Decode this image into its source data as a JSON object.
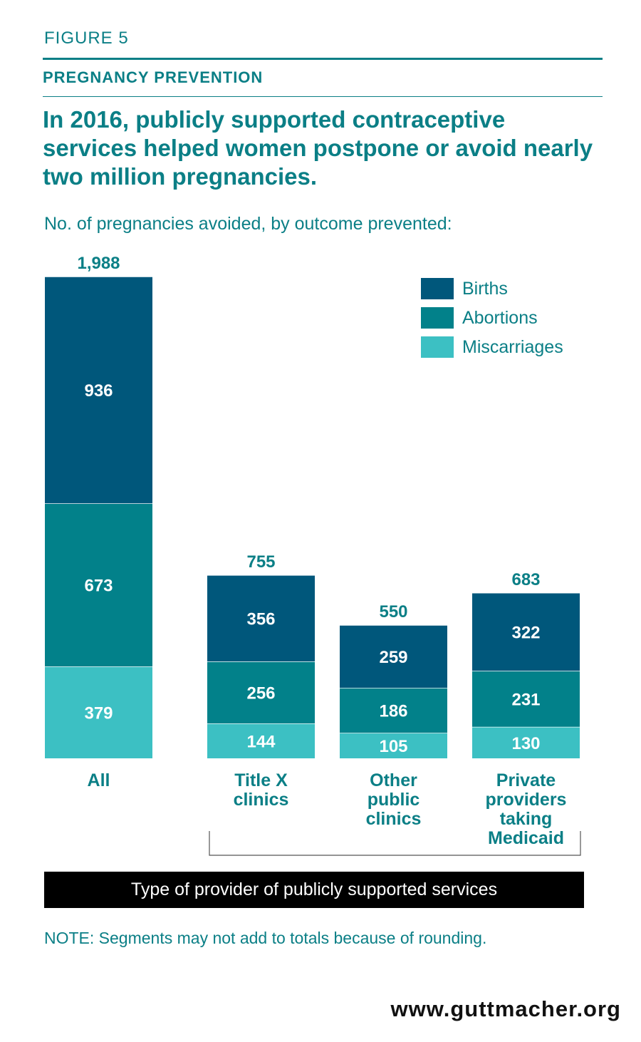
{
  "header": {
    "figure_label": "FIGURE 5",
    "section_label": "PREGNANCY PREVENTION",
    "headline": "In 2016, publicly supported contraceptive services helped women postpone or avoid nearly two million pregnancies."
  },
  "chart_data": {
    "type": "bar",
    "stacked": true,
    "title": "In 2016, publicly supported contraceptive services helped women postpone or avoid nearly two million pregnancies.",
    "subtitle": "No. of pregnancies avoided, by outcome prevented:",
    "categories": [
      [
        "All"
      ],
      [
        "Title X",
        "clinics"
      ],
      [
        "Other",
        "public",
        "clinics"
      ],
      [
        "Private",
        "providers",
        "taking",
        "Medicaid"
      ]
    ],
    "totals": [
      1988,
      755,
      550,
      683
    ],
    "total_labels": [
      "1,988",
      "755",
      "550",
      "683"
    ],
    "series": [
      {
        "name": "Births",
        "color": "#00577b",
        "values": [
          936,
          356,
          259,
          322
        ]
      },
      {
        "name": "Abortions",
        "color": "#02818a",
        "values": [
          673,
          256,
          186,
          231
        ]
      },
      {
        "name": "Miscarriages",
        "color": "#3cc0c3",
        "values": [
          379,
          144,
          105,
          130
        ]
      }
    ],
    "ylim": [
      0,
      1988
    ],
    "legend_position": "top-right",
    "grid": false,
    "group_label": "Type of provider of publicly supported services"
  },
  "note": "NOTE: Segments may not add to totals because of rounding.",
  "source": "www.guttmacher.org"
}
